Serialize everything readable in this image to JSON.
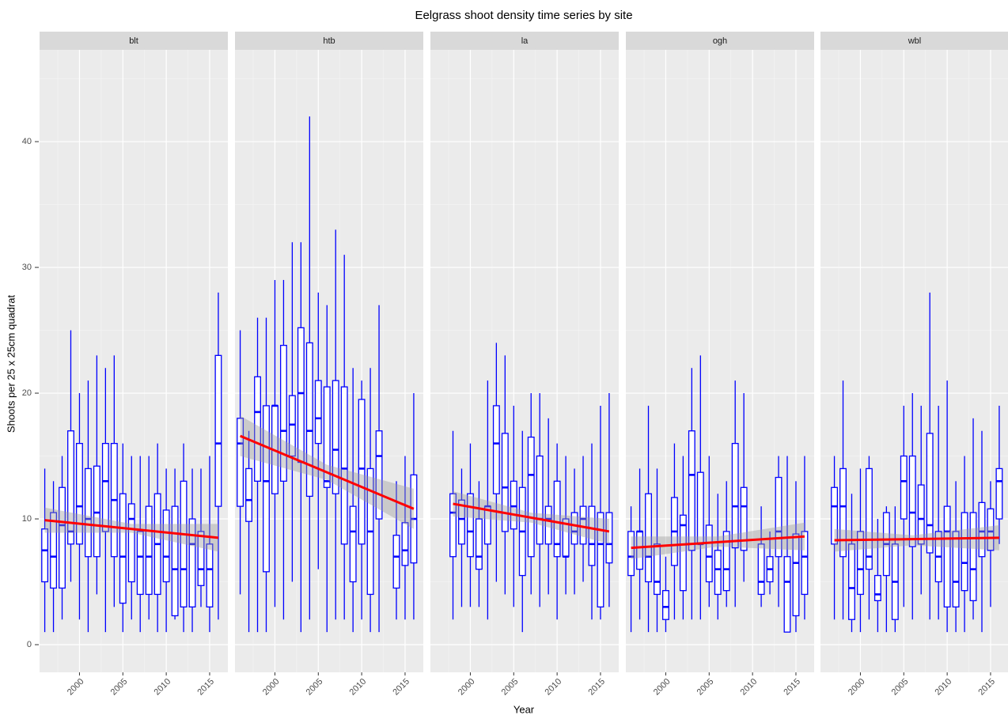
{
  "chart_data": {
    "type": "boxplot",
    "title": "Eelgrass shoot density time series by site",
    "x_label": "Year",
    "y_label": "Shoots per 25 x 25cm quadrat",
    "xlim": [
      1995.4,
      2017.1
    ],
    "ylim": [
      -2.2,
      47.3
    ],
    "xticks": [
      2000,
      2005,
      2010,
      2015
    ],
    "yticks": [
      0,
      10,
      20,
      30,
      40
    ],
    "x_minor_grid": [
      1997.5,
      2002.5,
      2007.5,
      2012.5
    ],
    "y_minor_grid": [
      5,
      15,
      25,
      35,
      45
    ],
    "box_color": "#0000ff",
    "trend_color": "#ff0000",
    "band_color": "#999999",
    "facets": [
      {
        "name": "blt",
        "x": [
          1996,
          1997,
          1998,
          1999,
          2000,
          2001,
          2002,
          2003,
          2004,
          2005,
          2006,
          2007,
          2008,
          2009,
          2010,
          2011,
          2012,
          2013,
          2014,
          2015,
          2016
        ],
        "min": [
          1,
          1,
          2,
          5,
          2,
          1,
          4,
          1,
          3,
          1,
          2,
          1,
          2,
          1,
          1,
          2,
          1,
          1,
          3,
          1,
          2
        ],
        "q1": [
          5,
          4.5,
          4.5,
          8,
          8,
          7,
          7,
          9,
          7,
          3.3,
          5,
          4,
          4,
          4,
          5,
          2.3,
          3,
          3,
          4.7,
          3,
          11
        ],
        "median": [
          7.5,
          7,
          9.5,
          9,
          11,
          10,
          10.5,
          13,
          11.5,
          7,
          10,
          7,
          7,
          8,
          7,
          6,
          6,
          8,
          6,
          6,
          16
        ],
        "q3": [
          9.2,
          10.5,
          12.5,
          17,
          16,
          14,
          14.2,
          16,
          16,
          12,
          11.2,
          9,
          11,
          12,
          10.7,
          11,
          13,
          10,
          9,
          8,
          23
        ],
        "max": [
          14,
          13,
          15,
          25,
          20,
          21,
          23,
          22,
          23,
          16,
          15,
          15,
          15,
          16,
          14,
          14,
          16,
          14,
          14,
          15,
          28
        ],
        "trend": {
          "x": [
            1996,
            2016
          ],
          "y": [
            9.9,
            8.5
          ]
        },
        "band": {
          "x": [
            1996,
            2006,
            2016
          ],
          "lower": [
            8.9,
            8.9,
            7.4
          ],
          "upper": [
            10.9,
            9.6,
            9.6
          ]
        }
      },
      {
        "name": "htb",
        "x": [
          1996,
          1997,
          1998,
          1999,
          2000,
          2001,
          2002,
          2003,
          2004,
          2005,
          2006,
          2007,
          2008,
          2009,
          2010,
          2011,
          2012,
          2014,
          2015,
          2016
        ],
        "min": [
          4,
          1,
          1,
          1,
          3,
          2,
          5,
          1,
          2,
          6,
          1,
          2,
          2,
          1,
          2,
          1,
          1,
          2,
          2,
          2
        ],
        "q1": [
          11,
          9.8,
          13,
          5.8,
          12,
          13,
          15,
          14.5,
          11.8,
          16,
          12.5,
          12,
          8,
          5,
          8,
          4,
          10,
          4.5,
          6.3,
          6.5
        ],
        "median": [
          16,
          11.5,
          18.5,
          13,
          19,
          17,
          17.5,
          20,
          17,
          18,
          13,
          15.5,
          14,
          9,
          14,
          9,
          15,
          7,
          7.5,
          10
        ],
        "q3": [
          18,
          14,
          21.3,
          19,
          19,
          23.8,
          19.8,
          25.2,
          24,
          21,
          20.5,
          21,
          20.5,
          11,
          19.5,
          14,
          17,
          8.7,
          9.7,
          13.5
        ],
        "max": [
          25,
          17,
          26,
          26,
          29,
          29,
          32,
          32,
          42,
          28,
          27,
          33,
          31,
          22,
          21,
          22,
          27,
          13,
          15,
          20
        ],
        "trend": {
          "x": [
            1996,
            2016
          ],
          "y": [
            16.6,
            10.8
          ]
        },
        "band": {
          "x": [
            1996,
            2006,
            2016
          ],
          "lower": [
            15.0,
            13.1,
            9.2
          ],
          "upper": [
            18.2,
            14.3,
            12.4
          ]
        }
      },
      {
        "name": "la",
        "x": [
          1998,
          1999,
          2000,
          2001,
          2002,
          2003,
          2004,
          2005,
          2006,
          2007,
          2008,
          2009,
          2010,
          2011,
          2012,
          2013,
          2014,
          2015,
          2016
        ],
        "min": [
          2,
          3,
          3,
          3,
          2,
          5,
          4,
          3,
          1,
          4,
          3,
          4,
          2,
          4,
          4,
          5,
          2,
          2,
          3
        ],
        "q1": [
          7,
          8,
          7,
          6,
          8,
          12,
          9,
          9.2,
          5.5,
          7,
          8,
          8,
          7,
          7,
          8,
          8,
          6.3,
          3,
          6.5
        ],
        "median": [
          10.5,
          10,
          9,
          7,
          11,
          16,
          12.5,
          11,
          9,
          13.5,
          10,
          10,
          8,
          7,
          9,
          10,
          8,
          8,
          8
        ],
        "q3": [
          12,
          11.5,
          12,
          10,
          11,
          19,
          16.8,
          13,
          12.5,
          16.5,
          15,
          11,
          13,
          10,
          10.5,
          11,
          11,
          10.5,
          10.5
        ],
        "max": [
          17,
          14,
          16,
          13,
          21,
          24,
          23,
          19,
          17,
          20,
          20,
          18,
          16,
          15,
          14,
          15,
          16,
          19,
          20
        ],
        "trend": {
          "x": [
            1998,
            2016
          ],
          "y": [
            11.2,
            9.0
          ]
        },
        "band": {
          "x": [
            1998,
            2007,
            2016
          ],
          "lower": [
            10.2,
            9.7,
            8.0
          ],
          "upper": [
            12.2,
            10.5,
            10.0
          ]
        }
      },
      {
        "name": "ogh",
        "x": [
          1996,
          1997,
          1998,
          1999,
          2000,
          2001,
          2002,
          2003,
          2004,
          2005,
          2006,
          2007,
          2008,
          2009,
          2011,
          2012,
          2013,
          2014,
          2015,
          2016
        ],
        "min": [
          1,
          2,
          1,
          1,
          1,
          2,
          2,
          2,
          2,
          3,
          2,
          3,
          3,
          5,
          3,
          4,
          3,
          1,
          1,
          2
        ],
        "q1": [
          5.5,
          6,
          5,
          4,
          2,
          6.3,
          4.3,
          7.5,
          8,
          5,
          4,
          4.3,
          7.7,
          7.5,
          4,
          5,
          7,
          1,
          2.3,
          4
        ],
        "median": [
          7,
          9,
          7,
          5,
          3,
          9,
          9.5,
          13.5,
          8,
          7,
          6,
          6,
          11,
          11,
          5,
          6,
          9,
          5,
          6.5,
          7
        ],
        "q3": [
          9,
          9,
          12,
          8,
          4.3,
          11.7,
          10.3,
          17,
          13.7,
          9.5,
          7.5,
          9,
          16,
          12.5,
          8,
          7,
          13.3,
          7,
          8.8,
          9
        ],
        "max": [
          11,
          14,
          19,
          14,
          7,
          16,
          15,
          22,
          23,
          15,
          12,
          13,
          21,
          20,
          11,
          9,
          15,
          15,
          13,
          15
        ],
        "trend": {
          "x": [
            1996,
            2016
          ],
          "y": [
            7.7,
            8.6
          ]
        },
        "band": {
          "x": [
            1996,
            2006,
            2016
          ],
          "lower": [
            6.8,
            7.8,
            7.5
          ],
          "upper": [
            8.6,
            8.6,
            9.7
          ]
        }
      },
      {
        "name": "wbl",
        "x": [
          1997,
          1998,
          1999,
          2000,
          2001,
          2002,
          2003,
          2004,
          2005,
          2006,
          2007,
          2008,
          2009,
          2010,
          2011,
          2012,
          2013,
          2014,
          2015,
          2016
        ],
        "min": [
          2,
          2,
          1,
          1,
          2,
          1,
          1,
          1,
          3,
          2,
          4,
          2,
          2,
          1,
          1,
          1,
          2,
          1,
          3,
          8
        ],
        "q1": [
          8,
          7,
          2,
          4,
          6,
          3.5,
          5.5,
          2,
          10,
          7.8,
          8,
          7.3,
          5,
          3,
          3,
          4.3,
          3.5,
          7,
          7.5,
          10
        ],
        "median": [
          11,
          11,
          4.5,
          6,
          7,
          4,
          8,
          5,
          13,
          10.5,
          10,
          9.5,
          7,
          9,
          5,
          6.5,
          6,
          9,
          9,
          13
        ],
        "q3": [
          12.5,
          14,
          8,
          9,
          14,
          5.5,
          10.5,
          8,
          15,
          15,
          12.7,
          16.8,
          9,
          11,
          9,
          10.5,
          10.5,
          11.3,
          10.8,
          14
        ],
        "max": [
          15,
          21,
          12,
          14,
          15,
          10,
          11,
          11,
          19,
          20,
          19,
          28,
          19,
          21,
          13,
          15,
          18,
          17,
          13,
          19
        ],
        "trend": {
          "x": [
            1997,
            2016
          ],
          "y": [
            8.3,
            8.5
          ]
        },
        "band": {
          "x": [
            1997,
            2006,
            2016
          ],
          "lower": [
            7.4,
            7.9,
            7.5
          ],
          "upper": [
            9.2,
            8.7,
            9.5
          ]
        }
      }
    ]
  }
}
